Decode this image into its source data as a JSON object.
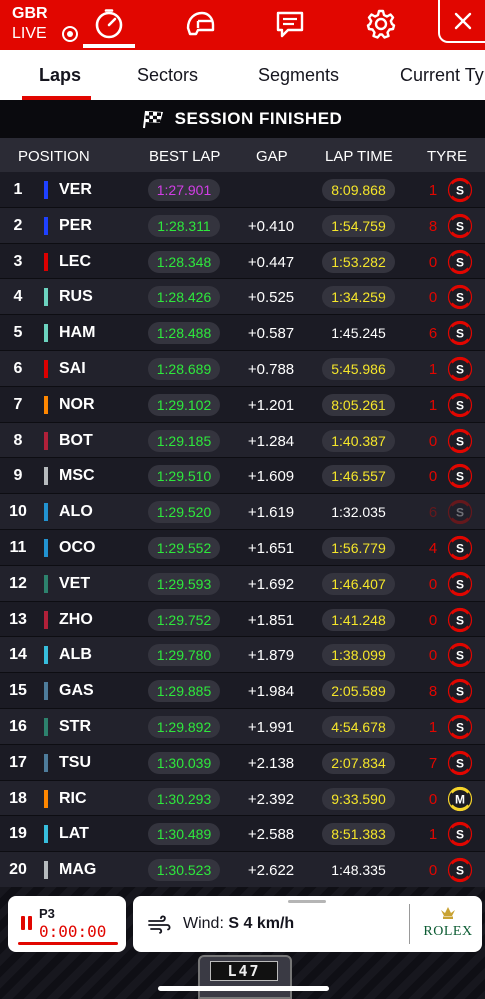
{
  "header": {
    "country": "GBR",
    "live_label": "LIVE",
    "nav_icons": [
      "timer-icon",
      "helmet-icon",
      "chat-icon",
      "gear-icon"
    ],
    "close_icon": "close-icon"
  },
  "tabs": [
    {
      "label": "Laps",
      "active": true
    },
    {
      "label": "Sectors",
      "active": false
    },
    {
      "label": "Segments",
      "active": false
    },
    {
      "label": "Current Tyres",
      "active": false
    }
  ],
  "session_banner": "SESSION FINISHED",
  "table": {
    "columns": [
      "POSITION",
      "BEST LAP",
      "GAP",
      "LAP TIME",
      "TYRE"
    ],
    "rows": [
      {
        "pos": "1",
        "driver": "VER",
        "team_color": "#1e41ff",
        "best_lap": "1:27.901",
        "best_color": "#d23ee6",
        "gap": "",
        "lap_time": "8:09.868",
        "lap_color": "#f5e62a",
        "laps": "1",
        "tyre": "S",
        "tyre_color": "#e10600",
        "faded": false
      },
      {
        "pos": "2",
        "driver": "PER",
        "team_color": "#1e41ff",
        "best_lap": "1:28.311",
        "best_color": "#2ee83c",
        "gap": "+0.410",
        "lap_time": "1:54.759",
        "lap_color": "#f5e62a",
        "laps": "8",
        "tyre": "S",
        "tyre_color": "#e10600",
        "faded": false
      },
      {
        "pos": "3",
        "driver": "LEC",
        "team_color": "#dc0000",
        "best_lap": "1:28.348",
        "best_color": "#2ee83c",
        "gap": "+0.447",
        "lap_time": "1:53.282",
        "lap_color": "#f5e62a",
        "laps": "0",
        "tyre": "S",
        "tyre_color": "#e10600",
        "faded": false
      },
      {
        "pos": "4",
        "driver": "RUS",
        "team_color": "#6cd3bf",
        "best_lap": "1:28.426",
        "best_color": "#2ee83c",
        "gap": "+0.525",
        "lap_time": "1:34.259",
        "lap_color": "#f5e62a",
        "laps": "0",
        "tyre": "S",
        "tyre_color": "#e10600",
        "faded": false
      },
      {
        "pos": "5",
        "driver": "HAM",
        "team_color": "#6cd3bf",
        "best_lap": "1:28.488",
        "best_color": "#2ee83c",
        "gap": "+0.587",
        "lap_time": "1:45.245",
        "lap_color": "#ffffff",
        "laps": "6",
        "tyre": "S",
        "tyre_color": "#e10600",
        "faded": false
      },
      {
        "pos": "6",
        "driver": "SAI",
        "team_color": "#dc0000",
        "best_lap": "1:28.689",
        "best_color": "#2ee83c",
        "gap": "+0.788",
        "lap_time": "5:45.986",
        "lap_color": "#f5e62a",
        "laps": "1",
        "tyre": "S",
        "tyre_color": "#e10600",
        "faded": false
      },
      {
        "pos": "7",
        "driver": "NOR",
        "team_color": "#ff8700",
        "best_lap": "1:29.102",
        "best_color": "#2ee83c",
        "gap": "+1.201",
        "lap_time": "8:05.261",
        "lap_color": "#f5e62a",
        "laps": "1",
        "tyre": "S",
        "tyre_color": "#e10600",
        "faded": false
      },
      {
        "pos": "8",
        "driver": "BOT",
        "team_color": "#b12039",
        "best_lap": "1:29.185",
        "best_color": "#2ee83c",
        "gap": "+1.284",
        "lap_time": "1:40.387",
        "lap_color": "#f5e62a",
        "laps": "0",
        "tyre": "S",
        "tyre_color": "#e10600",
        "faded": false
      },
      {
        "pos": "9",
        "driver": "MSC",
        "team_color": "#b6babd",
        "best_lap": "1:29.510",
        "best_color": "#2ee83c",
        "gap": "+1.609",
        "lap_time": "1:46.557",
        "lap_color": "#f5e62a",
        "laps": "0",
        "tyre": "S",
        "tyre_color": "#e10600",
        "faded": false
      },
      {
        "pos": "10",
        "driver": "ALO",
        "team_color": "#2293d1",
        "best_lap": "1:29.520",
        "best_color": "#2ee83c",
        "gap": "+1.619",
        "lap_time": "1:32.035",
        "lap_color": "#ffffff",
        "laps": "6",
        "tyre": "S",
        "tyre_color": "#e10600",
        "faded": true
      },
      {
        "pos": "11",
        "driver": "OCO",
        "team_color": "#2293d1",
        "best_lap": "1:29.552",
        "best_color": "#2ee83c",
        "gap": "+1.651",
        "lap_time": "1:56.779",
        "lap_color": "#f5e62a",
        "laps": "4",
        "tyre": "S",
        "tyre_color": "#e10600",
        "faded": false
      },
      {
        "pos": "12",
        "driver": "VET",
        "team_color": "#2d826d",
        "best_lap": "1:29.593",
        "best_color": "#2ee83c",
        "gap": "+1.692",
        "lap_time": "1:46.407",
        "lap_color": "#f5e62a",
        "laps": "0",
        "tyre": "S",
        "tyre_color": "#e10600",
        "faded": false
      },
      {
        "pos": "13",
        "driver": "ZHO",
        "team_color": "#b12039",
        "best_lap": "1:29.752",
        "best_color": "#2ee83c",
        "gap": "+1.851",
        "lap_time": "1:41.248",
        "lap_color": "#f5e62a",
        "laps": "0",
        "tyre": "S",
        "tyre_color": "#e10600",
        "faded": false
      },
      {
        "pos": "14",
        "driver": "ALB",
        "team_color": "#37bedd",
        "best_lap": "1:29.780",
        "best_color": "#2ee83c",
        "gap": "+1.879",
        "lap_time": "1:38.099",
        "lap_color": "#f5e62a",
        "laps": "0",
        "tyre": "S",
        "tyre_color": "#e10600",
        "faded": false
      },
      {
        "pos": "15",
        "driver": "GAS",
        "team_color": "#4e7c9b",
        "best_lap": "1:29.885",
        "best_color": "#2ee83c",
        "gap": "+1.984",
        "lap_time": "2:05.589",
        "lap_color": "#f5e62a",
        "laps": "8",
        "tyre": "S",
        "tyre_color": "#e10600",
        "faded": false
      },
      {
        "pos": "16",
        "driver": "STR",
        "team_color": "#2d826d",
        "best_lap": "1:29.892",
        "best_color": "#2ee83c",
        "gap": "+1.991",
        "lap_time": "4:54.678",
        "lap_color": "#f5e62a",
        "laps": "1",
        "tyre": "S",
        "tyre_color": "#e10600",
        "faded": false
      },
      {
        "pos": "17",
        "driver": "TSU",
        "team_color": "#4e7c9b",
        "best_lap": "1:30.039",
        "best_color": "#2ee83c",
        "gap": "+2.138",
        "lap_time": "2:07.834",
        "lap_color": "#f5e62a",
        "laps": "7",
        "tyre": "S",
        "tyre_color": "#e10600",
        "faded": false
      },
      {
        "pos": "18",
        "driver": "RIC",
        "team_color": "#ff8700",
        "best_lap": "1:30.293",
        "best_color": "#2ee83c",
        "gap": "+2.392",
        "lap_time": "9:33.590",
        "lap_color": "#f5e62a",
        "laps": "0",
        "tyre": "M",
        "tyre_color": "#f5d32a",
        "faded": false
      },
      {
        "pos": "19",
        "driver": "LAT",
        "team_color": "#37bedd",
        "best_lap": "1:30.489",
        "best_color": "#2ee83c",
        "gap": "+2.588",
        "lap_time": "8:51.383",
        "lap_color": "#f5e62a",
        "laps": "1",
        "tyre": "S",
        "tyre_color": "#e10600",
        "faded": false
      },
      {
        "pos": "20",
        "driver": "MAG",
        "team_color": "#b6babd",
        "best_lap": "1:30.523",
        "best_color": "#2ee83c",
        "gap": "+2.622",
        "lap_time": "1:48.335",
        "lap_color": "#ffffff",
        "laps": "0",
        "tyre": "S",
        "tyre_color": "#e10600",
        "faded": false
      }
    ]
  },
  "bottom": {
    "session_label": "P3",
    "session_timer": "0:00:00",
    "wind_label": "Wind:",
    "wind_value": "S 4 km/h",
    "sponsor": "ROLEX",
    "car_number": "L47"
  }
}
